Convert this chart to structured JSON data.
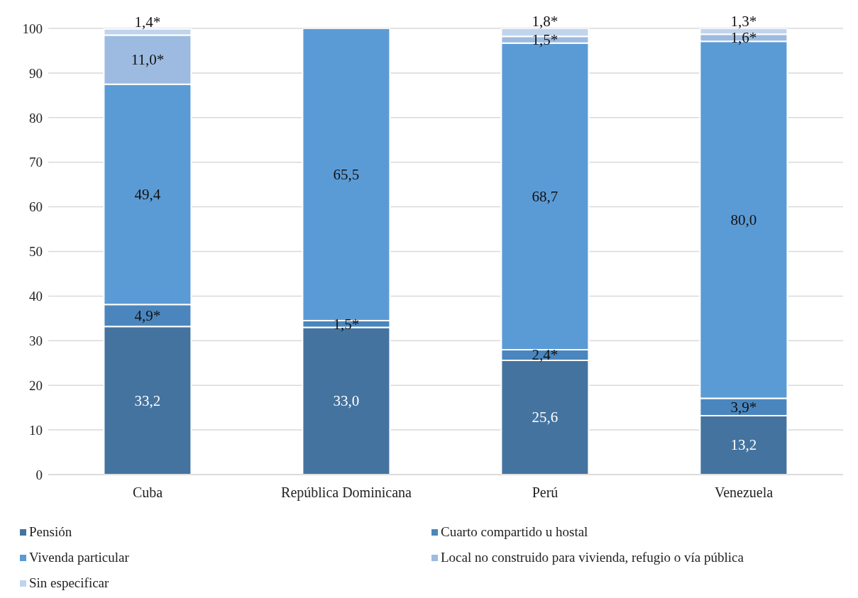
{
  "chart_data": {
    "type": "bar",
    "stacked": true,
    "categories": [
      "Cuba",
      "República Dominicana",
      "Perú",
      "Venezuela"
    ],
    "series": [
      {
        "name": "Pensión",
        "color": "#44739f",
        "values": [
          33.2,
          33.0,
          25.6,
          13.2
        ],
        "value_labels": [
          "33,2",
          "33,0",
          "25,6",
          "13,2"
        ]
      },
      {
        "name": "Cuarto compartido u hostal",
        "color": "#4a86bd",
        "values": [
          4.9,
          1.5,
          2.4,
          3.9
        ],
        "value_labels": [
          "4,9*",
          "1,5*",
          "2,4*",
          "3,9*"
        ]
      },
      {
        "name": "Vivenda particular",
        "color": "#5b9bd5",
        "values": [
          49.4,
          65.5,
          68.7,
          80.0
        ],
        "value_labels": [
          "49,4",
          "65,5",
          "68,7",
          "80,0"
        ]
      },
      {
        "name": "Local no construido para vivienda, refugio o vía pública",
        "color": "#9dbbe0",
        "values": [
          11.0,
          null,
          1.5,
          1.6
        ],
        "value_labels": [
          "11,0*",
          null,
          "1,5*",
          "1,6*"
        ]
      },
      {
        "name": "Sin especificar",
        "color": "#c0d4ec",
        "values": [
          1.4,
          null,
          1.8,
          1.3
        ],
        "value_labels": [
          "1,4*",
          null,
          "1,8*",
          "1,3*"
        ]
      }
    ],
    "ylim": [
      0,
      100
    ],
    "yticks": [
      0,
      10,
      20,
      30,
      40,
      50,
      60,
      70,
      80,
      90,
      100
    ],
    "grid": "y",
    "legend": "bottom"
  }
}
